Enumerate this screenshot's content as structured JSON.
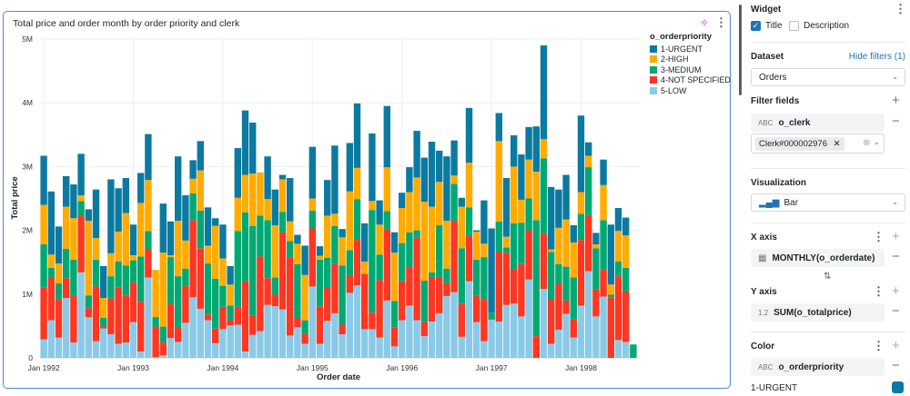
{
  "widget_card": {
    "title": "Total price and order month by order priority and clerk",
    "sparkle_icon": "sparkle-icon",
    "menu_icon": "kebab-icon"
  },
  "chart_data": {
    "type": "bar",
    "stacked": true,
    "title": "Total price and order month by order priority and clerk",
    "xlabel": "Order date",
    "ylabel": "Total price",
    "ylim": [
      0,
      5
    ],
    "yticks": [
      0,
      1,
      2,
      3,
      4,
      5
    ],
    "ytick_labels": [
      "0",
      "1M",
      "2M",
      "3M",
      "4M",
      "5M"
    ],
    "xtick_labels": [
      "Jan 1992",
      "Jan 1993",
      "Jan 1994",
      "Jan 1995",
      "Jan 1996",
      "Jan 1997",
      "Jan 1998"
    ],
    "grid": true,
    "legend_title": "o_orderpriority",
    "legend_position": "top-right",
    "categories": [
      "1992-01",
      "1992-02",
      "1992-03",
      "1992-04",
      "1992-05",
      "1992-06",
      "1992-07",
      "1992-08",
      "1992-09",
      "1992-10",
      "1992-11",
      "1992-12",
      "1993-01",
      "1993-02",
      "1993-03",
      "1993-04",
      "1993-05",
      "1993-06",
      "1993-07",
      "1993-08",
      "1993-09",
      "1993-10",
      "1993-11",
      "1993-12",
      "1994-01",
      "1994-02",
      "1994-03",
      "1994-04",
      "1994-05",
      "1994-06",
      "1994-07",
      "1994-08",
      "1994-09",
      "1994-10",
      "1994-11",
      "1994-12",
      "1995-01",
      "1995-02",
      "1995-03",
      "1995-04",
      "1995-05",
      "1995-06",
      "1995-07",
      "1995-08",
      "1995-09",
      "1995-10",
      "1995-11",
      "1995-12",
      "1996-01",
      "1996-02",
      "1996-03",
      "1996-04",
      "1996-05",
      "1996-06",
      "1996-07",
      "1996-08",
      "1996-09",
      "1996-10",
      "1996-11",
      "1996-12",
      "1997-01",
      "1997-02",
      "1997-03",
      "1997-04",
      "1997-05",
      "1997-06",
      "1997-07",
      "1997-08",
      "1997-09",
      "1997-10",
      "1997-11",
      "1997-12",
      "1998-01",
      "1998-02",
      "1998-03",
      "1998-04",
      "1998-05",
      "1998-06",
      "1998-07",
      "1998-08"
    ],
    "series": [
      {
        "name": "1-URGENT",
        "color": "#0b7aa0",
        "values": [
          0.77,
          0.99,
          0.58,
          0.48,
          0.53,
          0.65,
          0.18,
          0.76,
          0.5,
          1.16,
          0.68,
          0.55,
          0.48,
          0.47,
          0.72,
          0,
          0.77,
          0.53,
          1.01,
          0.71,
          0.29,
          0.46,
          0.6,
          0.12,
          0.53,
          0.29,
          0.78,
          1.01,
          0.8,
          0,
          0.67,
          0.56,
          0.07,
          0.68,
          0.14,
          0.46,
          0.81,
          0.15,
          0.56,
          1.07,
          0.13,
          0.76,
          1.01,
          0.6,
          1.06,
          0.38,
          0.96,
          0.32,
          0.24,
          0.39,
          0.73,
          0.69,
          1.02,
          0.49,
          1.01,
          0.55,
          0.14,
          0.86,
          0.02,
          0.68,
          1.32,
          0.44,
          0.92,
          0.49,
          0.71,
          0.51,
          0.71,
          1.47,
          0.98,
          0.6,
          0.7,
          0.27,
          1.2,
          0.21,
          0.18,
          0.4,
          0.94,
          0.36,
          0.28,
          0
        ]
      },
      {
        "name": "2-HIGH",
        "color": "#ffab00",
        "values": [
          0.62,
          0.21,
          0.31,
          0.66,
          0.65,
          0.09,
          1.17,
          0.34,
          0.31,
          0.36,
          0.47,
          0.82,
          0.08,
          0.84,
          0.8,
          0.74,
          1.16,
          0.03,
          0.87,
          0.44,
          0.23,
          0.63,
          0.28,
          0.83,
          0.43,
          0.33,
          0.52,
          0.59,
          0.82,
          0.68,
          0.33,
          0.82,
          0.51,
          0.31,
          0.32,
          0.71,
          0.19,
          0.06,
          0.66,
          0.19,
          0.44,
          0.92,
          0.49,
          0.19,
          0.14,
          0.47,
          0.69,
          0.76,
          0.55,
          0.63,
          0.83,
          1.24,
          1.03,
          0.68,
          0.75,
          0.13,
          0.65,
          0.7,
          0.44,
          0.21,
          0,
          1.26,
          0.17,
          0.89,
          0.36,
          0.61,
          0.76,
          0.3,
          0.04,
          0.57,
          0.74,
          0.55,
          0.34,
          0.18,
          0.06,
          0.55,
          0.16,
          0.48,
          0.51,
          0
        ]
      },
      {
        "name": "3-MEDIUM",
        "color": "#00a972",
        "values": [
          0.68,
          0.15,
          0.26,
          0.46,
          0.57,
          0.23,
          0.2,
          0.42,
          0.14,
          0.35,
          0.41,
          0.47,
          0.35,
          0.71,
          0.28,
          0.15,
          0.25,
          0.74,
          0.81,
          0.27,
          0.42,
          0.59,
          0.8,
          0.78,
          0.33,
          0.23,
          1.19,
          1.08,
          1.41,
          0.64,
          0.91,
          0.27,
          0.32,
          0.25,
          0.85,
          0.21,
          0.28,
          0.73,
          0.46,
          0.6,
          0.93,
          0.4,
          0.64,
          0,
          1.61,
          0.4,
          0.29,
          0.41,
          0.6,
          0.54,
          0.11,
          0.65,
          0.07,
          0.81,
          0.23,
          0.58,
          0.87,
          0.45,
          0.57,
          0.66,
          0.11,
          0.48,
          0.08,
          0.72,
          0.65,
          0.5,
          1.82,
          1.18,
          0.74,
          0.31,
          0.53,
          0.66,
          0.41,
          0.76,
          0.65,
          0.78,
          0.04,
          0.23,
          0.37,
          0.21
        ]
      },
      {
        "name": "4-NOT SPECIFIED",
        "color": "#ff3621",
        "values": [
          0.81,
          0.67,
          0.59,
          0.31,
          0.73,
          0.89,
          0.14,
          0.86,
          0.03,
          0.56,
          0.88,
          0.74,
          0.62,
          0.78,
          0.45,
          0.48,
          0.2,
          0.53,
          0.22,
          0.58,
          1.21,
          0.95,
          0.09,
          0.23,
          0.35,
          0.08,
          0.28,
          1.1,
          0.3,
          1.17,
          0.42,
          0.18,
          1.21,
          1.23,
          0.14,
          0.16,
          0.91,
          0.59,
          0.53,
          0.77,
          0.15,
          0.27,
          0.71,
          0.87,
          0.26,
          0.9,
          1.11,
          0.3,
          0.61,
          0.61,
          1.3,
          0.22,
          0.7,
          0.57,
          0.2,
          1.12,
          0.52,
          0.71,
          0.41,
          0.66,
          0,
          1.09,
          0.82,
          0.54,
          0.82,
          0.77,
          0.34,
          0.87,
          0.7,
          0.72,
          0.21,
          0.28,
          1.03,
          0.87,
          0.42,
          0.42,
          0.95,
          1.0,
          0.79,
          0
        ]
      },
      {
        "name": "5-LOW",
        "color": "#8bcae7",
        "values": [
          0.29,
          0.59,
          0.32,
          0.94,
          0.24,
          1.34,
          0.64,
          0.26,
          0.46,
          0.37,
          0.22,
          0.24,
          0.56,
          0.1,
          1.26,
          0.01,
          0.04,
          0.31,
          0.25,
          0.55,
          0.95,
          0.77,
          0.59,
          0.23,
          0.45,
          0.51,
          0.52,
          0.1,
          0.36,
          0.42,
          0.83,
          0.81,
          0.76,
          0.35,
          0.48,
          0.22,
          1.12,
          0.22,
          0.58,
          0.7,
          0.37,
          1.02,
          1.14,
          0.45,
          0.45,
          0.32,
          0.9,
          0.18,
          0.59,
          0.82,
          0.59,
          0.34,
          0.57,
          0.7,
          0.97,
          1.03,
          0.33,
          1.2,
          0.56,
          0.26,
          0.6,
          0.57,
          0.83,
          0.85,
          0.65,
          1.23,
          0,
          1.08,
          0.22,
          0.44,
          0.69,
          0.32,
          0.82,
          1.36,
          0.65,
          0.96,
          0,
          0.28,
          0.25,
          0
        ]
      }
    ]
  },
  "panel": {
    "widget": {
      "label": "Widget",
      "title_label": "Title",
      "title_checked": true,
      "description_label": "Description",
      "description_checked": false
    },
    "dataset": {
      "label": "Dataset",
      "hide_filters": "Hide filters (1)",
      "value": "Orders"
    },
    "filter_fields": {
      "label": "Filter fields",
      "field": "o_clerk",
      "field_type_icon": "ABC",
      "selected_value": "Clerk#000002976"
    },
    "visualization": {
      "label": "Visualization",
      "value": "Bar"
    },
    "x_axis": {
      "label": "X axis",
      "field": "MONTHLY(o_orderdate)"
    },
    "y_axis": {
      "label": "Y axis",
      "field": "SUM(o_totalprice)",
      "field_type_icon": "1.2"
    },
    "color": {
      "label": "Color",
      "field": "o_orderpriority",
      "field_type_icon": "ABC",
      "first_item": "1-URGENT",
      "first_item_color": "#0b7aa0"
    },
    "accent_color": "#2272b4"
  }
}
